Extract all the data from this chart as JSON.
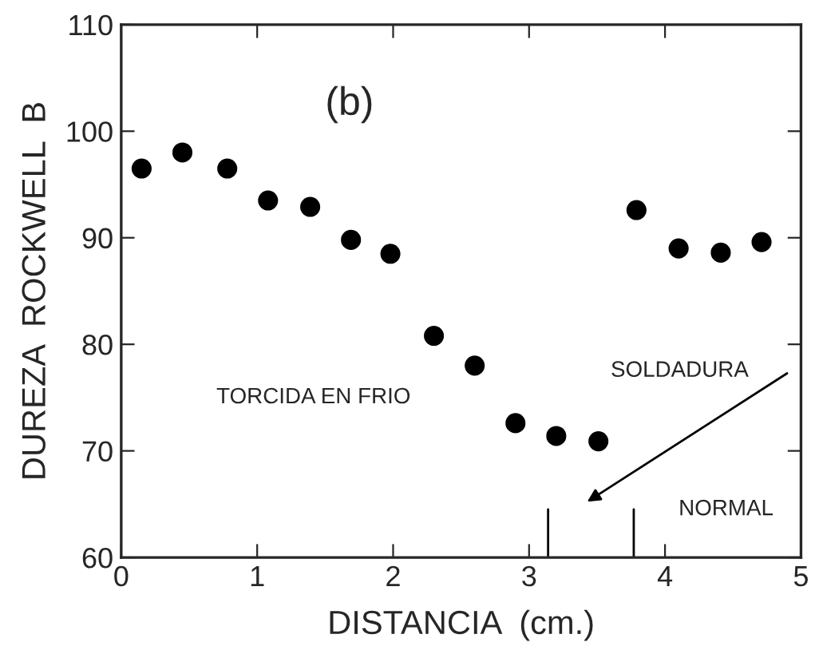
{
  "chart_data": {
    "type": "scatter",
    "xlabel": "DISTANCIA  (cm.)",
    "ylabel": "DUREZA  ROCKWELL  B",
    "x": [
      0.15,
      0.45,
      0.78,
      1.08,
      1.39,
      1.69,
      1.98,
      2.3,
      2.6,
      2.9,
      3.2,
      3.51,
      3.79,
      4.1,
      4.41,
      4.71
    ],
    "series": [
      {
        "color": "#000000",
        "values": [
          96.5,
          98.0,
          96.5,
          93.5,
          92.9,
          89.8,
          88.5,
          80.8,
          78.0,
          72.6,
          71.4,
          70.9,
          92.6,
          89.0,
          88.6,
          89.6
        ]
      }
    ],
    "marker": "circle",
    "xlim": [
      0,
      5
    ],
    "ylim": [
      60,
      110
    ],
    "xticks": [
      0,
      1,
      2,
      3,
      4,
      5
    ],
    "yticks": [
      60,
      70,
      80,
      90,
      100,
      110
    ],
    "grid": false,
    "legend": false,
    "ref_lines": [
      {
        "axis": "x",
        "value": 3.14,
        "color": "#000000"
      },
      {
        "axis": "x",
        "value": 3.77,
        "color": "#000000"
      }
    ],
    "annotations": [
      "(b)",
      "TORCIDA EN FRIO",
      "NORMAL",
      "SOLDADURA"
    ]
  }
}
